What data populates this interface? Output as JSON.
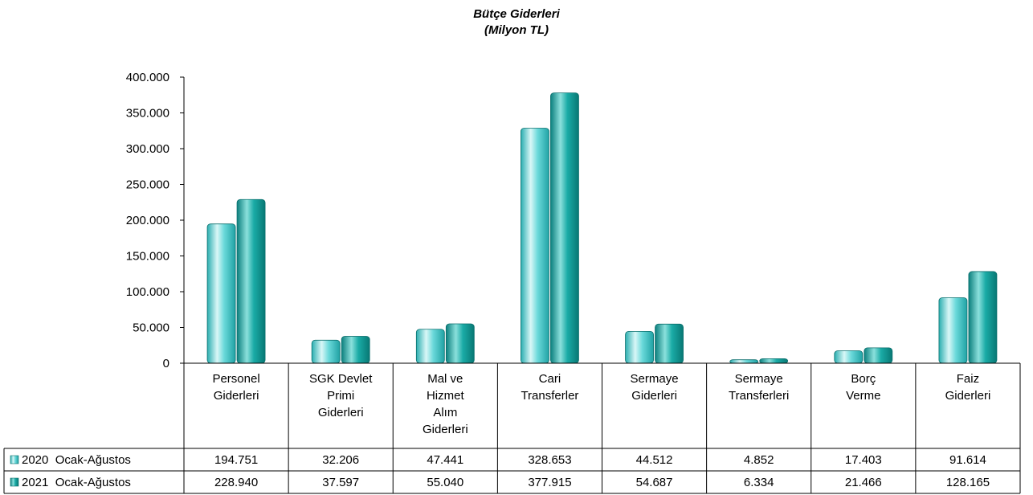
{
  "chart_data": {
    "type": "bar",
    "title": "Bütçe Giderleri",
    "subtitle": "(Milyon TL)",
    "categories": [
      [
        "Personel",
        "Giderleri"
      ],
      [
        "SGK Devlet",
        "Primi",
        "Giderleri"
      ],
      [
        "Mal ve",
        "Hizmet",
        "Alım",
        "Giderleri"
      ],
      [
        "Cari",
        "Transferler"
      ],
      [
        "Sermaye",
        "Giderleri"
      ],
      [
        "Sermaye",
        "Transferleri"
      ],
      [
        "Borç",
        "Verme"
      ],
      [
        "Faiz",
        "Giderleri"
      ]
    ],
    "series": [
      {
        "name": "2020  Ocak-Ağustos",
        "values": [
          194751,
          32206,
          47441,
          328653,
          44512,
          4852,
          17403,
          91614
        ],
        "labels": [
          "194.751",
          "32.206",
          "47.441",
          "328.653",
          "44.512",
          "4.852",
          "17.403",
          "91.614"
        ],
        "color": "#5ed3d3"
      },
      {
        "name": "2021  Ocak-Ağustos",
        "values": [
          228940,
          37597,
          55040,
          377915,
          54687,
          6334,
          21466,
          128165
        ],
        "labels": [
          "228.940",
          "37.597",
          "55.040",
          "377.915",
          "54.687",
          "6.334",
          "21.466",
          "128.165"
        ],
        "color": "#13a7a3"
      }
    ],
    "ylim": [
      0,
      400000
    ],
    "yticks": [
      {
        "value": 0,
        "label": "0"
      },
      {
        "value": 50000,
        "label": "50.000"
      },
      {
        "value": 100000,
        "label": "100.000"
      },
      {
        "value": 150000,
        "label": "150.000"
      },
      {
        "value": 200000,
        "label": "200.000"
      },
      {
        "value": 250000,
        "label": "250.000"
      },
      {
        "value": 300000,
        "label": "300.000"
      },
      {
        "value": 350000,
        "label": "350.000"
      },
      {
        "value": 400000,
        "label": "400.000"
      }
    ],
    "grid": false,
    "legend": "data-table-left"
  }
}
